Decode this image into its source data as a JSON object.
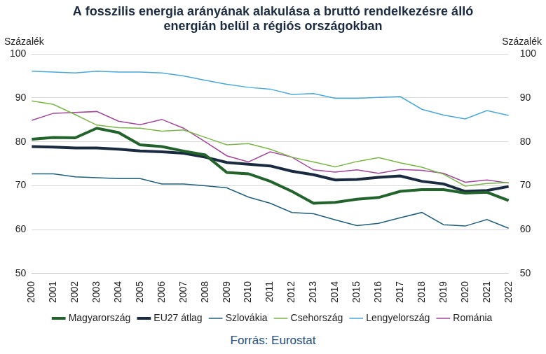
{
  "chart_data": {
    "type": "line",
    "title": [
      "A fosszilis energia arányának alakulása a bruttó rendelkezésre álló",
      "energián belül a régiós országokban"
    ],
    "ylabel": "Százalék",
    "y2label": "Százalék",
    "source": "Forrás: Eurostat",
    "categories": [
      "2000",
      "2001",
      "2002",
      "2003",
      "2004",
      "2005",
      "2006",
      "2007",
      "2008",
      "2009",
      "2010",
      "2011",
      "2012",
      "2013",
      "2014",
      "2015",
      "2016",
      "2017",
      "2018",
      "2019",
      "2020",
      "2021",
      "2022"
    ],
    "series": [
      {
        "name": "Magyarország",
        "color": "#22632b",
        "line_style": "thick",
        "values": [
          80.6,
          81.0,
          80.9,
          83.1,
          82.1,
          79.3,
          78.9,
          77.9,
          77.0,
          73.0,
          72.7,
          71.0,
          68.7,
          66.0,
          66.2,
          66.9,
          67.3,
          68.7,
          69.1,
          69.1,
          68.3,
          68.5,
          66.6
        ]
      },
      {
        "name": "Szlovákia",
        "color": "#1f5f7a",
        "line_style": "solid",
        "values": [
          72.7,
          72.7,
          72.0,
          71.8,
          71.6,
          71.6,
          70.4,
          70.4,
          70.0,
          69.5,
          67.4,
          66.0,
          63.9,
          63.6,
          62.2,
          60.9,
          61.4,
          62.7,
          63.9,
          61.1,
          60.8,
          62.3,
          60.3
        ]
      },
      {
        "name": "Csehország",
        "color": "#7ab648",
        "line_style": "solid",
        "values": [
          89.3,
          88.5,
          86.2,
          83.8,
          83.2,
          83.1,
          82.4,
          82.7,
          81.0,
          79.3,
          79.6,
          78.3,
          76.5,
          75.4,
          74.3,
          75.5,
          76.4,
          75.2,
          74.2,
          72.6,
          69.9,
          70.5,
          70.7
        ]
      },
      {
        "name": "Lengyelország",
        "color": "#4aa8d8",
        "line_style": "solid",
        "values": [
          96.1,
          95.9,
          95.7,
          96.1,
          95.9,
          95.9,
          95.7,
          95.0,
          94.0,
          93.1,
          92.4,
          92.0,
          90.8,
          91.0,
          89.9,
          89.9,
          90.1,
          90.3,
          87.4,
          86.1,
          85.2,
          87.1,
          86.0
        ]
      },
      {
        "name": "Románia",
        "color": "#a1459a",
        "line_style": "solid",
        "values": [
          84.9,
          86.5,
          86.7,
          86.9,
          84.7,
          83.9,
          85.1,
          83.1,
          80.0,
          76.8,
          75.4,
          77.7,
          76.5,
          73.6,
          73.1,
          73.6,
          72.8,
          73.7,
          73.5,
          72.8,
          70.8,
          71.3,
          70.6
        ]
      },
      {
        "name": "EU27 átlag",
        "color": "#1a2a40",
        "line_style": "thick",
        "values": [
          78.9,
          78.8,
          78.6,
          78.6,
          78.3,
          77.9,
          77.7,
          77.4,
          76.5,
          75.3,
          74.9,
          74.5,
          73.3,
          72.5,
          71.3,
          71.4,
          71.9,
          72.2,
          71.0,
          70.4,
          68.7,
          68.9,
          69.8
        ]
      }
    ],
    "ylim": [
      50,
      100
    ],
    "yticks": [
      50,
      60,
      70,
      80,
      90,
      100
    ],
    "y2lim": [
      50,
      100
    ],
    "y2ticks": [
      50,
      60,
      70,
      80,
      90,
      100
    ],
    "grid": true,
    "legend": "bottom"
  }
}
